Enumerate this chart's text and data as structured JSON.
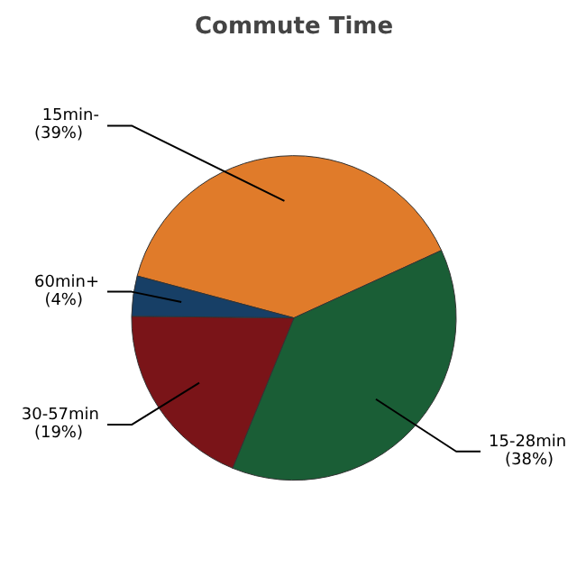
{
  "chart_data": {
    "type": "pie",
    "title": "Commute Time",
    "categories": [
      "15min-",
      "15-28min",
      "30-57min",
      "60min+"
    ],
    "values": [
      39,
      38,
      19,
      4
    ],
    "value_labels": [
      "(39%)",
      "(38%)",
      "(19%)",
      "(4%)"
    ],
    "colors": [
      "#e07b2a",
      "#1a5e36",
      "#7a1418",
      "#173f66"
    ]
  }
}
